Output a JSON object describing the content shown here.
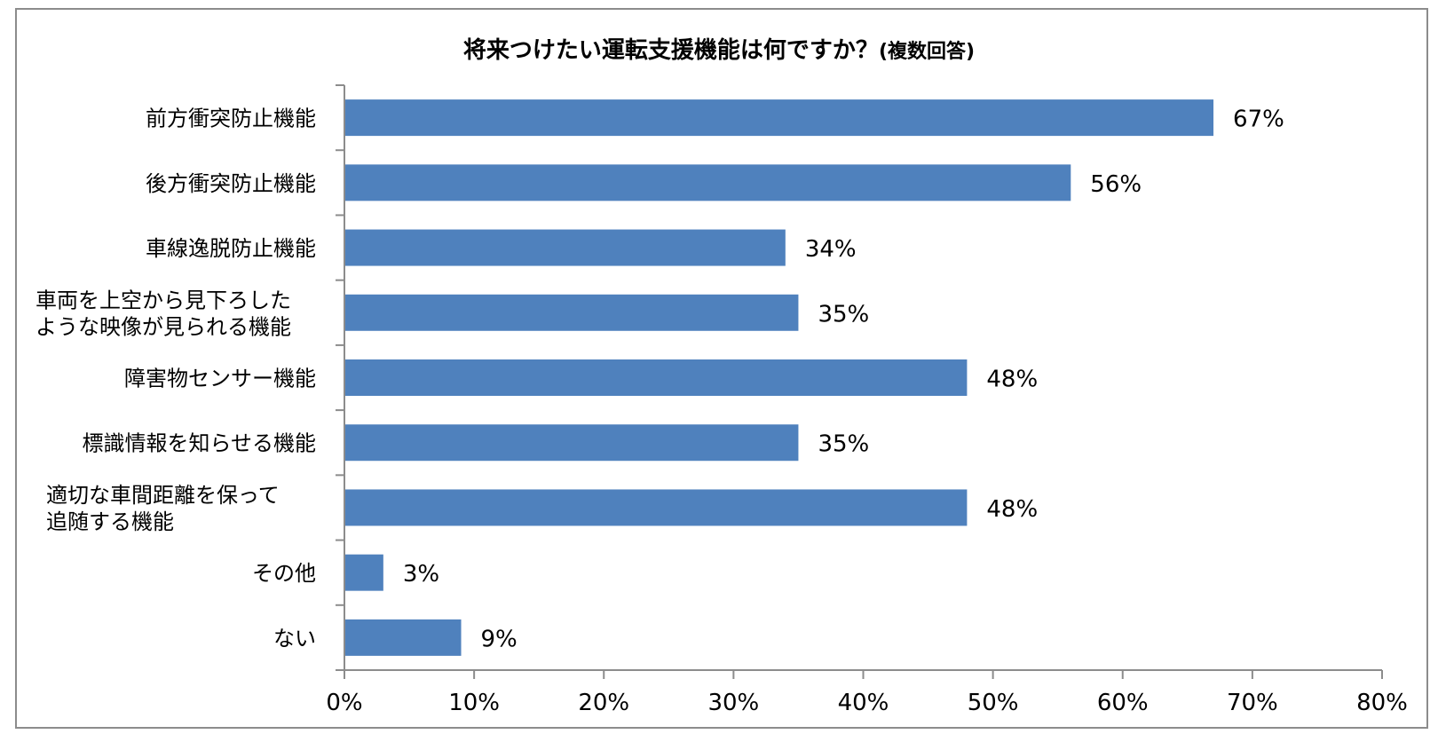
{
  "chart_data": {
    "type": "bar",
    "orientation": "horizontal",
    "title": "将来つけたい運転支援機能は何ですか？",
    "subtitle": "(複数回答)",
    "categories": [
      [
        "前方衝突防止機能"
      ],
      [
        "後方衝突防止機能"
      ],
      [
        "車線逸脱防止機能"
      ],
      [
        "車両を上空から見下ろした",
        "ような映像が見られる機能"
      ],
      [
        "障害物センサー機能"
      ],
      [
        "標識情報を知らせる機能"
      ],
      [
        "適切な車間距離を保って",
        "追随する機能"
      ],
      [
        "その他"
      ],
      [
        "ない"
      ]
    ],
    "values": [
      67,
      56,
      34,
      35,
      48,
      35,
      48,
      3,
      9
    ],
    "data_labels": [
      "67%",
      "56%",
      "34%",
      "35%",
      "48%",
      "35%",
      "48%",
      "3%",
      "9%"
    ],
    "xlim": [
      0,
      80
    ],
    "x_ticks": [
      "0%",
      "10%",
      "20%",
      "30%",
      "40%",
      "50%",
      "60%",
      "70%",
      "80%"
    ],
    "grid": false,
    "bar_color": "#4f81bd"
  }
}
